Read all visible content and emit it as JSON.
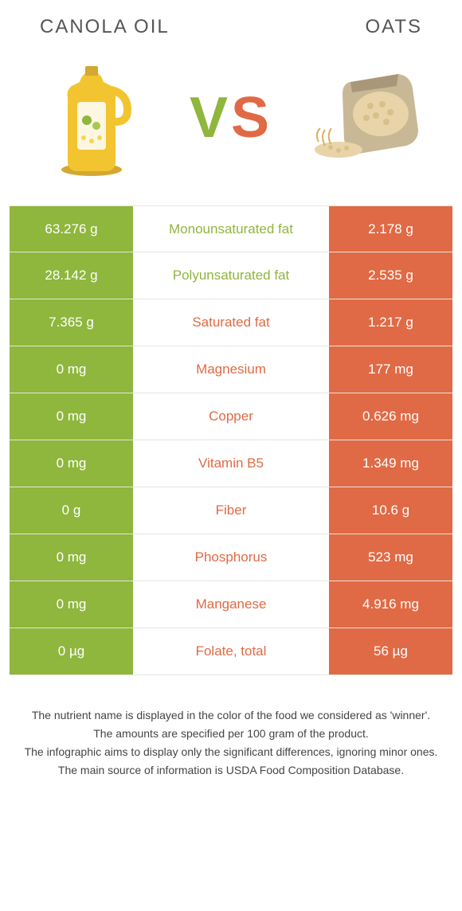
{
  "colors": {
    "left_food": "#8fb63d",
    "right_food": "#e06a45",
    "neutral_bg": "#ffffff",
    "row_border": "#e8e4dc"
  },
  "header": {
    "left_title": "CANOLA OIL",
    "right_title": "OATS"
  },
  "rows": [
    {
      "left": "63.276 g",
      "label": "Monounsaturated fat",
      "right": "2.178 g",
      "winner": "left"
    },
    {
      "left": "28.142 g",
      "label": "Polyunsaturated fat",
      "right": "2.535 g",
      "winner": "left"
    },
    {
      "left": "7.365 g",
      "label": "Saturated fat",
      "right": "1.217 g",
      "winner": "right"
    },
    {
      "left": "0 mg",
      "label": "Magnesium",
      "right": "177 mg",
      "winner": "right"
    },
    {
      "left": "0 mg",
      "label": "Copper",
      "right": "0.626 mg",
      "winner": "right"
    },
    {
      "left": "0 mg",
      "label": "Vitamin B5",
      "right": "1.349 mg",
      "winner": "right"
    },
    {
      "left": "0 g",
      "label": "Fiber",
      "right": "10.6 g",
      "winner": "right"
    },
    {
      "left": "0 mg",
      "label": "Phosphorus",
      "right": "523 mg",
      "winner": "right"
    },
    {
      "left": "0 mg",
      "label": "Manganese",
      "right": "4.916 mg",
      "winner": "right"
    },
    {
      "left": "0 µg",
      "label": "Folate, total",
      "right": "56 µg",
      "winner": "right"
    }
  ],
  "footnote": {
    "line1": "The nutrient name is displayed in the color of the food we considered as 'winner'.",
    "line2": "The amounts are specified per 100 gram of the product.",
    "line3": "The infographic aims to display only the significant differences, ignoring minor ones.",
    "line4": "The main source of information is USDA Food Composition Database."
  }
}
